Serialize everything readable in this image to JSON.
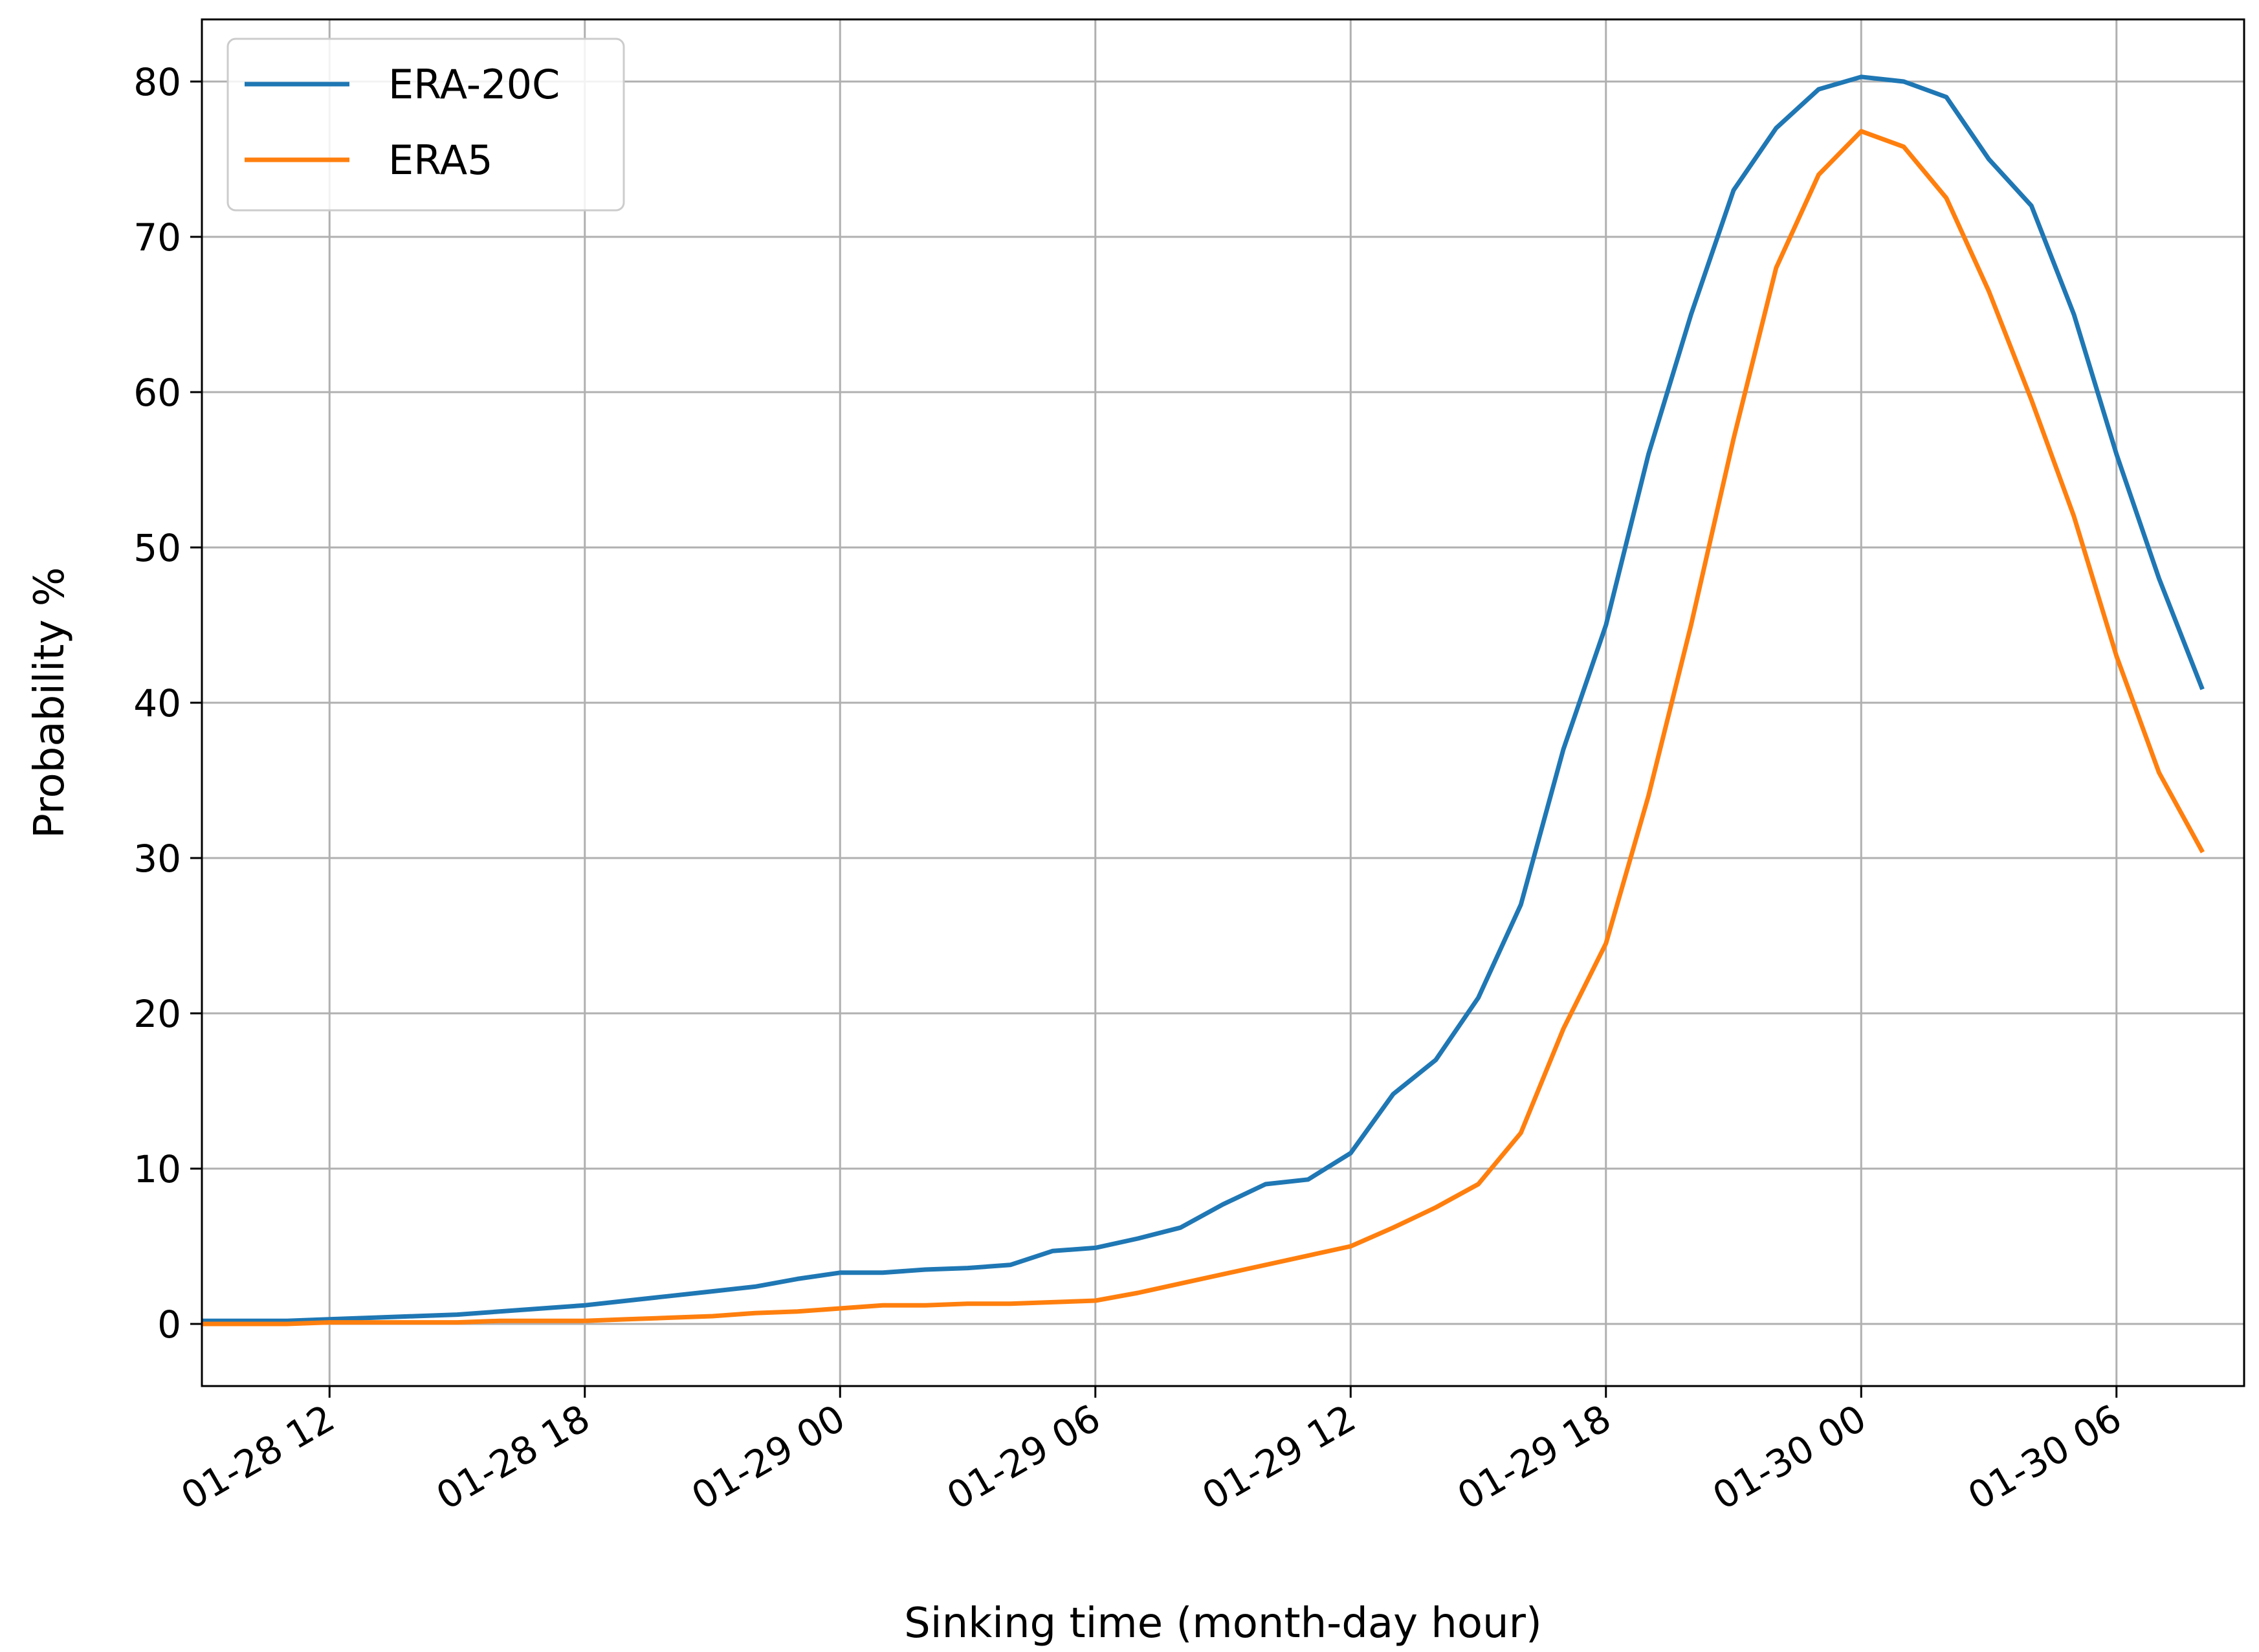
{
  "chart_data": {
    "type": "line",
    "xlabel": "Sinking time (month-day hour)",
    "ylabel": "Probability %",
    "x_start": "01-28 08",
    "x_step_hours": 1,
    "x_ticks": [
      "01-28 12",
      "01-28 18",
      "01-29 00",
      "01-29 06",
      "01-29 12",
      "01-29 18",
      "01-30 00",
      "01-30 06"
    ],
    "y_ticks": [
      0,
      10,
      20,
      30,
      40,
      50,
      60,
      70,
      80
    ],
    "xlim": [
      "01-28 09",
      "01-30 09"
    ],
    "ylim": [
      -4,
      84
    ],
    "grid": true,
    "legend_position": "top-left",
    "series": [
      {
        "name": "ERA-20C",
        "color": "#1f77b4",
        "values": [
          0.1,
          0.2,
          0.2,
          0.2,
          0.3,
          0.4,
          0.5,
          0.6,
          0.8,
          1.0,
          1.2,
          1.5,
          1.8,
          2.1,
          2.4,
          2.9,
          3.3,
          3.3,
          3.5,
          3.6,
          3.8,
          4.7,
          4.9,
          5.5,
          6.2,
          7.7,
          9.0,
          9.3,
          11.0,
          14.8,
          17.0,
          21.0,
          27.0,
          37.0,
          45.0,
          56.0,
          65.0,
          73.0,
          77.0,
          79.5,
          80.3,
          80.0,
          79.0,
          75.0,
          72.0,
          65.0,
          56.0,
          48.0,
          41.0
        ]
      },
      {
        "name": "ERA5",
        "color": "#ff7f0e",
        "values": [
          0.0,
          0.0,
          0.0,
          0.0,
          0.1,
          0.1,
          0.1,
          0.1,
          0.2,
          0.2,
          0.2,
          0.3,
          0.4,
          0.5,
          0.7,
          0.8,
          1.0,
          1.2,
          1.2,
          1.3,
          1.3,
          1.4,
          1.5,
          2.0,
          2.6,
          3.2,
          3.8,
          4.4,
          5.0,
          6.2,
          7.5,
          9.0,
          12.3,
          19.0,
          24.5,
          34.0,
          45.0,
          57.0,
          68.0,
          74.0,
          76.8,
          75.8,
          72.5,
          66.5,
          59.5,
          52.0,
          43.0,
          35.5,
          30.5
        ]
      }
    ]
  }
}
